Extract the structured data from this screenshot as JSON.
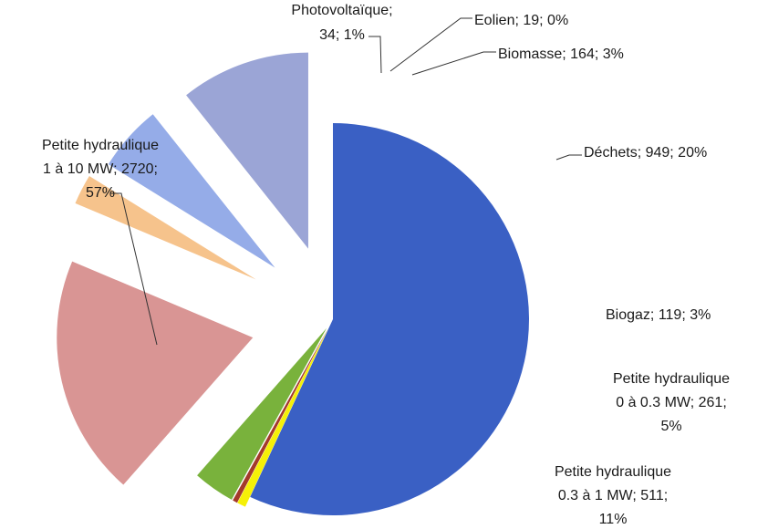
{
  "chart_data": {
    "type": "pie",
    "title": "",
    "legend": "none",
    "exploded": true,
    "slices": [
      {
        "name": "Petite hydraulique 1 à 10 MW",
        "value": 2720,
        "percent": "57%",
        "color": "#3a60c4",
        "label_lines": [
          "Petite hydraulique",
          "1 à 10 MW; 2720;",
          "57%"
        ]
      },
      {
        "name": "Photovoltaïque",
        "value": 34,
        "percent": "1%",
        "color": "#f5f007",
        "label_lines": [
          "Photovoltaïque;",
          "34; 1%"
        ]
      },
      {
        "name": "Eolien",
        "value": 19,
        "percent": "0%",
        "color": "#a33a2a",
        "label_lines": [
          "Eolien; 19; 0%"
        ]
      },
      {
        "name": "Biomasse",
        "value": 164,
        "percent": "3%",
        "color": "#79b23c",
        "label_lines": [
          "Biomasse; 164; 3%"
        ]
      },
      {
        "name": "Déchets",
        "value": 949,
        "percent": "20%",
        "color": "#d99594",
        "label_lines": [
          "Déchets; 949; 20%"
        ]
      },
      {
        "name": "Biogaz",
        "value": 119,
        "percent": "3%",
        "color": "#f6c38c",
        "label_lines": [
          "Biogaz; 119; 3%"
        ]
      },
      {
        "name": "Petite hydraulique 0 à 0.3 MW",
        "value": 261,
        "percent": "5%",
        "color": "#95ace8",
        "label_lines": [
          "Petite hydraulique",
          "0 à 0.3 MW; 261;",
          "5%"
        ]
      },
      {
        "name": "Petite hydraulique 0.3 à 1 MW",
        "value": 511,
        "percent": "11%",
        "color": "#9ba5d6",
        "label_lines": [
          "Petite hydraulique",
          "0.3 à 1 MW; 511;",
          "11%"
        ]
      }
    ]
  }
}
